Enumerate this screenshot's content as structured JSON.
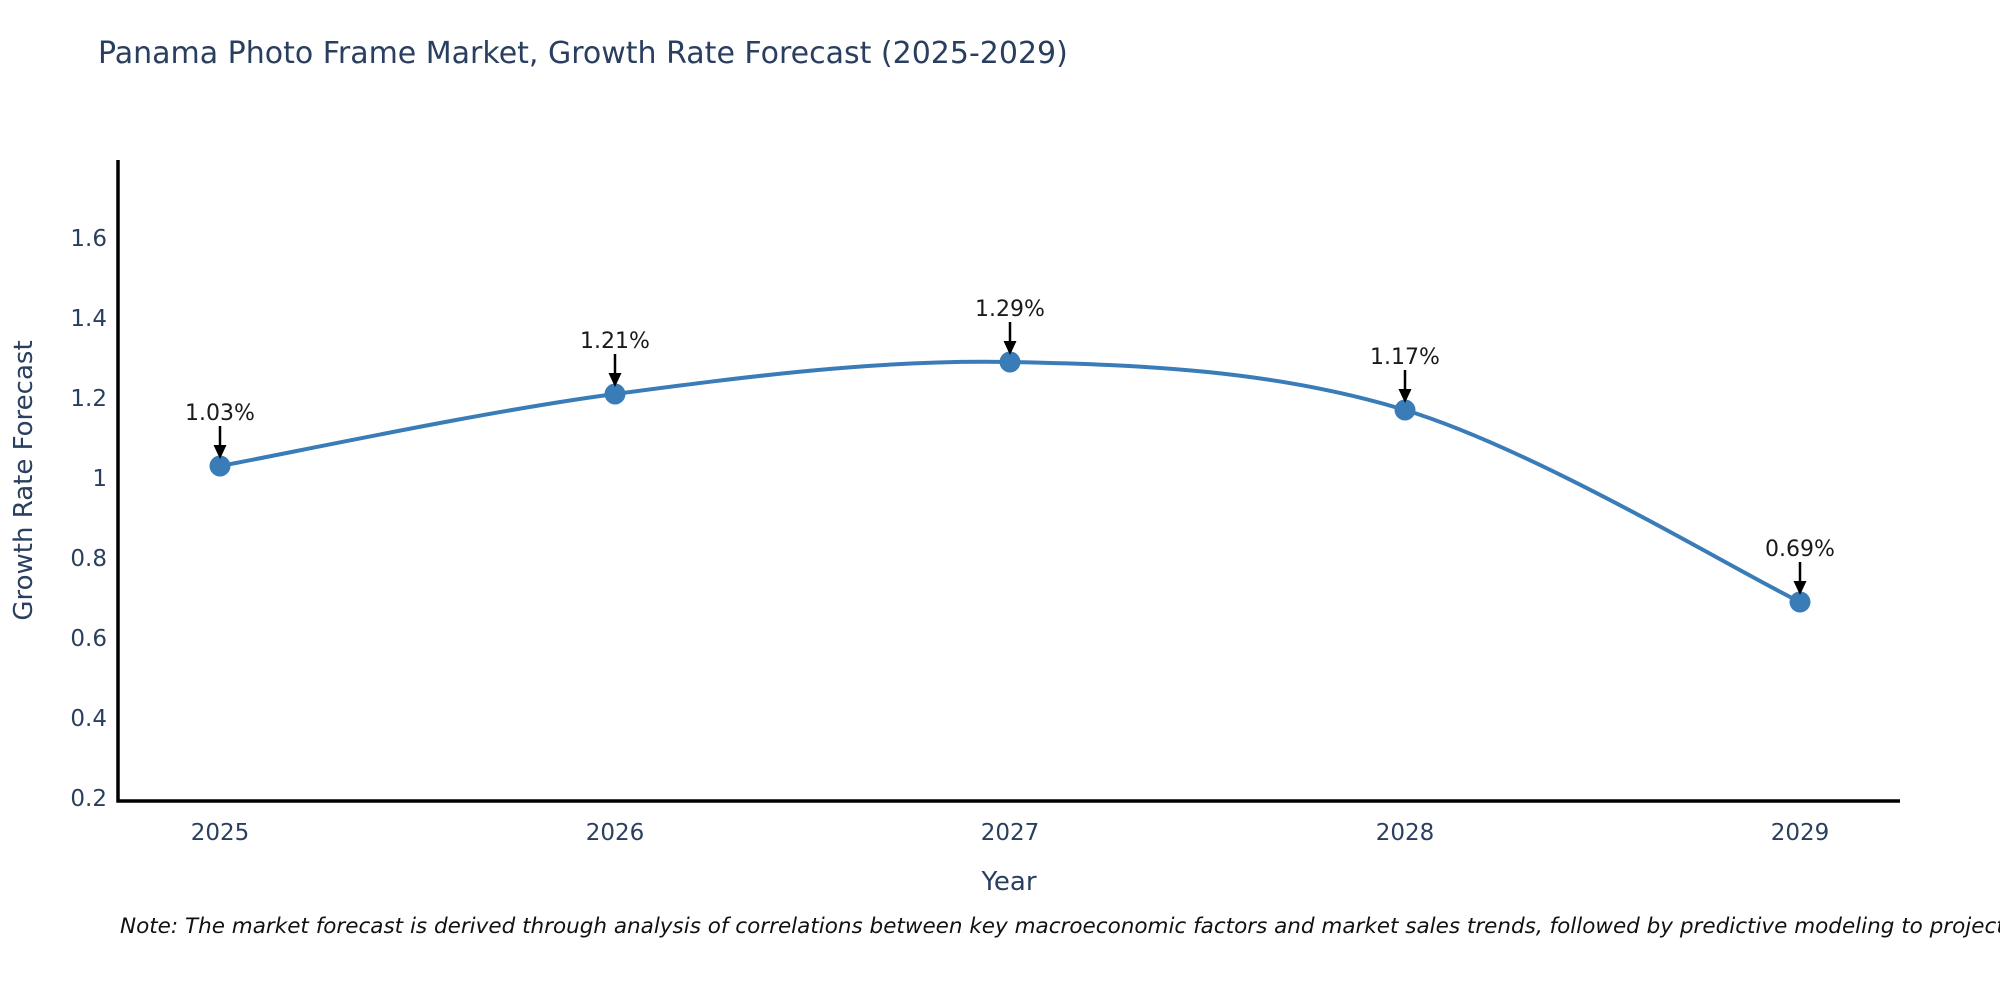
{
  "title": "Panama Photo Frame Market, Growth Rate Forecast (2025-2029)",
  "footnote": "Note: The market forecast is derived through analysis of correlations between key macroeconomic factors and market sales trends, followed by predictive modeling to project future sales",
  "chart_data": {
    "type": "line",
    "title": "Panama Photo Frame Market, Growth Rate Forecast (2025-2029)",
    "x": [
      2025,
      2026,
      2027,
      2028,
      2029
    ],
    "x_tick_labels": [
      "2025",
      "2026",
      "2027",
      "2028",
      "2029"
    ],
    "series": [
      {
        "name": "Growth Rate Forecast",
        "values": [
          1.03,
          1.21,
          1.29,
          1.17,
          0.69
        ]
      }
    ],
    "point_labels": [
      "1.03%",
      "1.21%",
      "1.29%",
      "1.17%",
      "0.69%"
    ],
    "xlabel": "Year",
    "ylabel": "Growth Rate Forecast",
    "y_ticks": [
      0.2,
      0.4,
      0.6,
      0.8,
      1.0,
      1.2,
      1.4,
      1.6
    ],
    "y_tick_labels": [
      "0.2",
      "0.4",
      "0.6",
      "0.8",
      "1",
      "1.2",
      "1.4",
      "1.6"
    ],
    "ylim": [
      0.2,
      1.8
    ],
    "line_shape": "spline",
    "grid": false,
    "legend": false,
    "colors": {
      "line": "#3a7cb8",
      "marker": "#3a7cb8",
      "axis": "#000000",
      "tick_label": "#2a3f5f",
      "axis_title": "#2a3f5f",
      "title": "#2a3f5f",
      "annotation_text": "#1a1a1a",
      "annotation_arrow": "#000000",
      "background": "#ffffff"
    }
  }
}
